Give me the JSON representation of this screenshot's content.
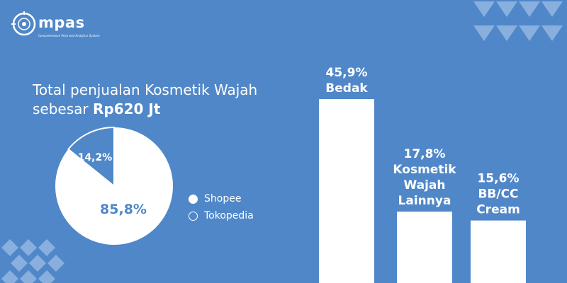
{
  "logo": {
    "text": "mpas",
    "tagline": "Comprehensive Price and Analytics System"
  },
  "title": {
    "line1": "Total penjualan Kosmetik Wajah",
    "line2_prefix": "sebesar ",
    "line2_value": "Rp620 Jt"
  },
  "colors": {
    "background": "#5087c8",
    "foreground": "#ffffff",
    "accent_text": "#4f86c6"
  },
  "chart_data": [
    {
      "type": "pie",
      "title": "",
      "slices": [
        {
          "name": "Shopee",
          "value": 85.8,
          "label": "85,8%",
          "color": "#ffffff"
        },
        {
          "name": "Tokopedia",
          "value": 14.2,
          "label": "14,2%",
          "color": "#5087c8"
        }
      ],
      "legend_position": "right"
    },
    {
      "type": "bar",
      "title": "",
      "categories": [
        "Bedak",
        "Kosmetik Wajah Lainnya",
        "BB/CC Cream"
      ],
      "category_lines": [
        [
          "Bedak"
        ],
        [
          "Kosmetik",
          "Wajah",
          "Lainnya"
        ],
        [
          "BB/CC",
          "Cream"
        ]
      ],
      "values": [
        45.9,
        17.8,
        15.6
      ],
      "value_labels": [
        "45,9%",
        "17,8%",
        "15,6%"
      ],
      "xlabel": "",
      "ylabel": "",
      "ylim": [
        0,
        50
      ],
      "grid": false
    }
  ]
}
